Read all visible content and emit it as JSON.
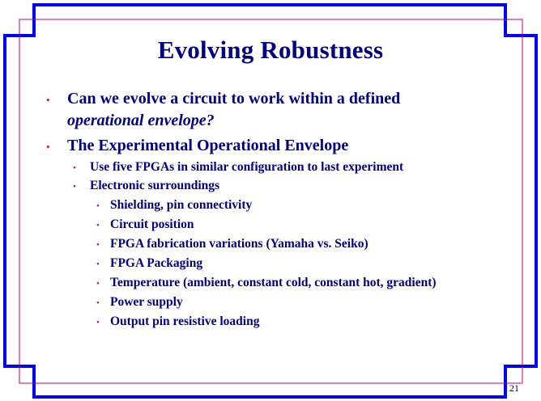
{
  "slide": {
    "title": "Evolving Robustness",
    "slide_number": "21",
    "colors": {
      "text": "#000080",
      "frame": "#0000ff",
      "inner_frame": "#c0006a",
      "bullet": "#c0006a"
    },
    "bullets": [
      {
        "line1": "Can we evolve a circuit to work within a defined",
        "line2_italic": "operational envelope?"
      },
      {
        "text": "The Experimental Operational Envelope"
      }
    ],
    "sub_bullets": [
      "Use five FPGAs in similar configuration to last experiment",
      "Electronic surroundings"
    ],
    "sub_sub_bullets": [
      "Shielding, pin connectivity",
      "Circuit position",
      "FPGA fabrication variations (Yamaha vs. Seiko)",
      "FPGA Packaging",
      "Temperature (ambient, constant cold, constant hot, gradient)",
      "Power supply",
      "Output pin resistive loading"
    ]
  }
}
